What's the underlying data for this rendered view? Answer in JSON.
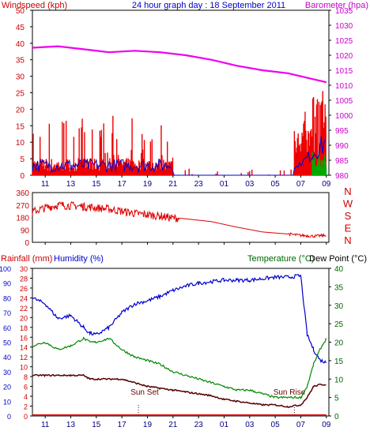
{
  "header": {
    "left": "Windspeed (kph)",
    "center": "24 hour graph day : 18 September 2011",
    "right": "Barometer (hpa)"
  },
  "colors": {
    "wind": "#ee0000",
    "gust_blue": "#0000cc",
    "gust_green": "#00aa00",
    "barometer": "#ee00ee",
    "direction": "#dd0000",
    "humidity": "#0000cc",
    "temperature": "#008800",
    "dewpoint": "#550000",
    "rain": "#dd0000",
    "label_left": "#cc0000",
    "label_mid": "#0000cc",
    "label_right": "#006600",
    "frame": "#000000"
  },
  "x_ticks": [
    "11",
    "13",
    "15",
    "17",
    "19",
    "21",
    "23",
    "01",
    "03",
    "05",
    "07",
    "09"
  ],
  "chart_data": [
    {
      "type": "line",
      "panel": "wind_barometer",
      "y_left_label": "Windspeed (kph)",
      "y_right_label": "Barometer (hpa)",
      "y_left_ticks": [
        "0",
        "5",
        "10",
        "15",
        "20",
        "25",
        "30",
        "35",
        "40",
        "45",
        "50"
      ],
      "y_right_ticks": [
        "980",
        "985",
        "990",
        "995",
        "1000",
        "1005",
        "1010",
        "1015",
        "1020",
        "1025",
        "1030",
        "1035"
      ],
      "ylim_left": [
        0,
        50
      ],
      "ylim_right": [
        980,
        1035
      ],
      "x_hours_from_10": [
        0,
        2,
        4,
        6,
        8,
        10,
        12,
        14,
        16,
        18,
        20,
        22,
        23
      ],
      "barometer": [
        1022.5,
        1023,
        1022,
        1021,
        1021.5,
        1021,
        1020,
        1018.5,
        1016.5,
        1015,
        1014,
        1012,
        1011
      ],
      "wind_segments": [
        {
          "from": 0,
          "to": 11,
          "base": 4,
          "peak": 18
        },
        {
          "from": 11,
          "to": 20.5,
          "base": 0,
          "peak": 2
        },
        {
          "from": 20.5,
          "to": 23,
          "base": 10,
          "peak": 31
        }
      ]
    },
    {
      "type": "line",
      "panel": "wind_direction",
      "y_ticks": [
        "0",
        "90",
        "180",
        "270",
        "360"
      ],
      "ylim": [
        0,
        360
      ],
      "compass_labels": [
        "N",
        "W",
        "S",
        "E",
        "N"
      ],
      "x_hours_from_10": [
        0,
        1,
        2,
        4,
        6,
        8,
        10,
        11,
        11.5,
        14,
        16,
        18,
        20,
        21,
        22,
        23
      ],
      "direction": [
        220,
        250,
        270,
        260,
        240,
        210,
        190,
        175,
        175,
        150,
        110,
        75,
        60,
        50,
        45,
        50
      ]
    },
    {
      "type": "line",
      "panel": "rain_humidity_temp",
      "y_label_rain": "Rainfall (mm)",
      "y_label_humidity": "Humidity (%)",
      "y_label_temp": "Temperature (°C)",
      "y_label_dew": "Dew Point (°C)",
      "y_ticks_outer": [
        "0",
        "10",
        "20",
        "30",
        "40",
        "50",
        "60",
        "70",
        "80",
        "90",
        "100"
      ],
      "y_ticks_inner": [
        "0",
        "2",
        "4",
        "6",
        "8",
        "10",
        "12",
        "14",
        "16",
        "18",
        "20",
        "22",
        "24",
        "26",
        "28",
        "30"
      ],
      "y_ticks_right": [
        "0",
        "5",
        "10",
        "15",
        "20",
        "25",
        "30",
        "35",
        "40"
      ],
      "ylim_humidity": [
        0,
        100
      ],
      "ylim_temp": [
        0,
        40
      ],
      "x_hours_from_10": [
        0,
        1,
        2,
        3,
        4,
        4.5,
        5,
        6,
        7,
        8,
        9,
        10,
        11,
        12,
        13,
        14,
        15,
        16,
        17,
        18,
        19,
        20,
        21,
        21.5,
        22,
        22.5,
        23
      ],
      "humidity": [
        80,
        76,
        66,
        68,
        60,
        56,
        55,
        60,
        70,
        76,
        78,
        81,
        85,
        88,
        90,
        91,
        92,
        92,
        92,
        93,
        94,
        94,
        95,
        55,
        45,
        38,
        36
      ],
      "temperature": [
        19,
        20,
        18,
        19,
        21,
        20,
        20,
        21,
        18,
        16,
        15,
        14,
        12,
        11,
        10,
        9,
        8,
        7,
        7,
        6,
        5,
        5,
        5,
        8,
        14,
        18,
        21
      ],
      "dewpoint": [
        11,
        11,
        11,
        11,
        11,
        10,
        10,
        10,
        10,
        9,
        8,
        7.5,
        7,
        6.5,
        6,
        5.5,
        4.5,
        4,
        3.5,
        3,
        3,
        2.5,
        3,
        5,
        8,
        8.5,
        8.5
      ],
      "rain": [
        0,
        0,
        0,
        0,
        0,
        0,
        0,
        0,
        0,
        0,
        0,
        0,
        0,
        0,
        0,
        0,
        0,
        0,
        0,
        0,
        0,
        0,
        0,
        0,
        0,
        0,
        0
      ],
      "annotations": [
        "Sun Set",
        "Sun Rise"
      ]
    }
  ]
}
